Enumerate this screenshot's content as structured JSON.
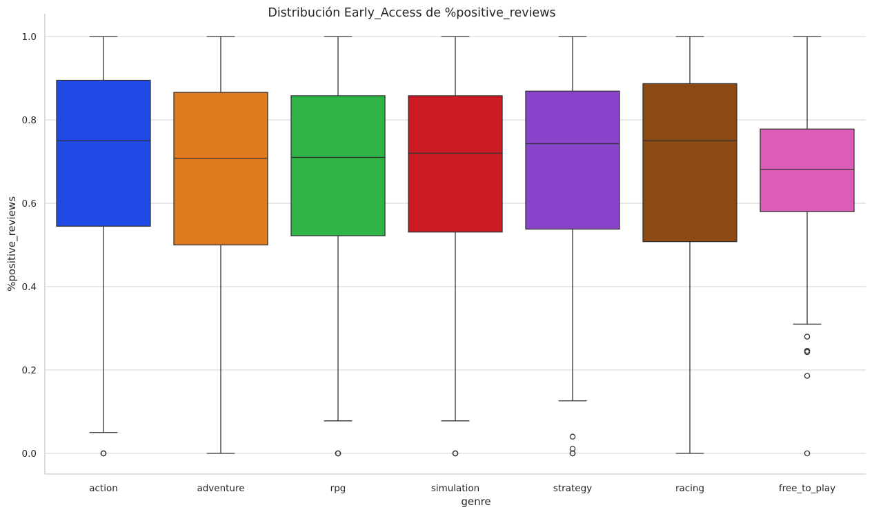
{
  "chart_data": {
    "type": "box",
    "title": "Distribución Early_Access de %positive_reviews",
    "xlabel": "genre",
    "ylabel": "%positive_reviews",
    "ylim": [
      -0.05,
      1.055
    ],
    "yticks": [
      0.0,
      0.2,
      0.4,
      0.6,
      0.8,
      1.0
    ],
    "ytick_labels": [
      "0.0",
      "0.2",
      "0.4",
      "0.6",
      "0.8",
      "1.0"
    ],
    "grid": "horizontal",
    "legend": "none",
    "categories": [
      "action",
      "adventure",
      "rpg",
      "simulation",
      "strategy",
      "racing",
      "free_to_play"
    ],
    "boxes": [
      {
        "category": "action",
        "whisker_low": 0.05,
        "q1": 0.545,
        "median": 0.75,
        "q3": 0.895,
        "whisker_high": 1.0,
        "outliers": [
          0.0,
          0.0,
          0.0
        ],
        "color": "#1f4ae6"
      },
      {
        "category": "adventure",
        "whisker_low": 0.0,
        "q1": 0.5,
        "median": 0.708,
        "q3": 0.866,
        "whisker_high": 1.0,
        "outliers": [],
        "color": "#df7b1e"
      },
      {
        "category": "rpg",
        "whisker_low": 0.078,
        "q1": 0.522,
        "median": 0.71,
        "q3": 0.858,
        "whisker_high": 1.0,
        "outliers": [
          0.0,
          0.0,
          0.0
        ],
        "color": "#2fb447"
      },
      {
        "category": "simulation",
        "whisker_low": 0.078,
        "q1": 0.531,
        "median": 0.72,
        "q3": 0.858,
        "whisker_high": 1.0,
        "outliers": [
          0.0,
          0.0,
          0.0
        ],
        "color": "#cb1b25"
      },
      {
        "category": "strategy",
        "whisker_low": 0.126,
        "q1": 0.538,
        "median": 0.743,
        "q3": 0.869,
        "whisker_high": 1.0,
        "outliers": [
          0.04,
          0.011,
          0.0,
          0.0
        ],
        "color": "#8944cc"
      },
      {
        "category": "racing",
        "whisker_low": 0.0,
        "q1": 0.508,
        "median": 0.75,
        "q3": 0.887,
        "whisker_high": 1.0,
        "outliers": [],
        "color": "#8b4a14"
      },
      {
        "category": "free_to_play",
        "whisker_low": 0.31,
        "q1": 0.58,
        "median": 0.681,
        "q3": 0.778,
        "whisker_high": 1.0,
        "outliers": [
          0.28,
          0.246,
          0.243,
          0.186,
          0.0
        ],
        "color": "#db5db7"
      }
    ]
  }
}
